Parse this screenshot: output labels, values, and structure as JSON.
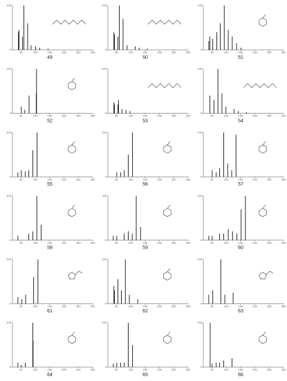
{
  "chart_data": [
    {
      "type": "bar",
      "title": "49",
      "x": [
        41,
        43,
        55,
        60,
        73,
        85,
        101,
        115,
        144
      ],
      "values": [
        40,
        45,
        30,
        100,
        60,
        10,
        8,
        5,
        3
      ],
      "color": "#111111",
      "xlim": [
        20,
        300
      ],
      "ylim": [
        0,
        100
      ],
      "xticks": [
        50,
        100,
        150,
        200,
        250,
        300
      ],
      "yticks": [
        0,
        100
      ]
    },
    {
      "type": "bar",
      "title": "50",
      "x": [
        41,
        43,
        55,
        60,
        73,
        87,
        115,
        129,
        158
      ],
      "values": [
        40,
        35,
        30,
        100,
        70,
        10,
        8,
        5,
        3
      ],
      "color": "#111111",
      "xlim": [
        20,
        300
      ],
      "ylim": [
        0,
        100
      ],
      "xticks": [
        50,
        100,
        150,
        200,
        250,
        300
      ],
      "yticks": [
        0,
        100
      ]
    },
    {
      "type": "bar",
      "title": "51",
      "x": [
        39,
        43,
        53,
        67,
        79,
        93,
        107,
        121,
        136,
        152
      ],
      "values": [
        20,
        30,
        25,
        40,
        60,
        100,
        45,
        30,
        15,
        5
      ],
      "color": "#111111",
      "xlim": [
        20,
        300
      ],
      "ylim": [
        0,
        100
      ],
      "xticks": [
        50,
        100,
        150,
        200,
        250,
        300
      ],
      "yticks": [
        0,
        100
      ]
    },
    {
      "type": "bar",
      "title": "52",
      "x": [
        51,
        63,
        78,
        103,
        104
      ],
      "values": [
        15,
        8,
        40,
        45,
        100
      ],
      "color": "#111111",
      "xlim": [
        20,
        300
      ],
      "ylim": [
        0,
        100
      ],
      "xticks": [
        50,
        100,
        150,
        200,
        250,
        300
      ],
      "yticks": [
        0,
        100
      ]
    },
    {
      "type": "bar",
      "title": "53",
      "x": [
        41,
        43,
        55,
        57,
        69,
        83,
        97
      ],
      "values": [
        25,
        20,
        20,
        30,
        10,
        8,
        5
      ],
      "color": "#111111",
      "xlim": [
        20,
        300
      ],
      "ylim": [
        0,
        100
      ],
      "xticks": [
        50,
        100,
        150,
        200,
        250,
        300
      ],
      "yticks": [
        0,
        100
      ]
    },
    {
      "type": "bar",
      "title": "54",
      "x": [
        43,
        57,
        71,
        85,
        99,
        127,
        142,
        170
      ],
      "values": [
        40,
        30,
        100,
        45,
        15,
        10,
        5,
        3
      ],
      "color": "#111111",
      "xlim": [
        20,
        300
      ],
      "ylim": [
        0,
        100
      ],
      "xticks": [
        50,
        100,
        150,
        200,
        250,
        300
      ],
      "yticks": [
        0,
        100
      ]
    },
    {
      "type": "bar",
      "title": "55",
      "x": [
        39,
        51,
        65,
        77,
        91,
        106
      ],
      "values": [
        10,
        15,
        12,
        15,
        60,
        100
      ],
      "color": "#111111",
      "xlim": [
        20,
        300
      ],
      "ylim": [
        0,
        100
      ],
      "xticks": [
        50,
        100,
        150,
        200,
        250,
        300
      ],
      "yticks": [
        0,
        100
      ]
    },
    {
      "type": "bar",
      "title": "56",
      "x": [
        51,
        65,
        77,
        91,
        106
      ],
      "values": [
        10,
        10,
        15,
        50,
        100
      ],
      "color": "#111111",
      "xlim": [
        20,
        300
      ],
      "ylim": [
        0,
        100
      ],
      "xticks": [
        50,
        100,
        150,
        200,
        250,
        300
      ],
      "yticks": [
        0,
        100
      ]
    },
    {
      "type": "bar",
      "title": "57",
      "x": [
        51,
        65,
        77,
        91,
        105,
        119,
        134
      ],
      "values": [
        15,
        10,
        20,
        100,
        30,
        15,
        95
      ],
      "color": "#111111",
      "xlim": [
        20,
        300
      ],
      "ylim": [
        0,
        100
      ],
      "xticks": [
        50,
        100,
        150,
        200,
        250,
        300
      ],
      "yticks": [
        0,
        100
      ]
    },
    {
      "type": "bar",
      "title": "58",
      "x": [
        39,
        77,
        91,
        105,
        120
      ],
      "values": [
        10,
        15,
        20,
        100,
        35
      ],
      "color": "#111111",
      "xlim": [
        20,
        300
      ],
      "ylim": [
        0,
        100
      ],
      "xticks": [
        50,
        100,
        150,
        200,
        250,
        300
      ],
      "yticks": [
        0,
        100
      ]
    },
    {
      "type": "bar",
      "title": "59",
      "x": [
        39,
        51,
        77,
        91,
        105,
        119,
        134
      ],
      "values": [
        10,
        10,
        15,
        20,
        15,
        100,
        30
      ],
      "color": "#111111",
      "xlim": [
        20,
        300
      ],
      "ylim": [
        0,
        100
      ],
      "xticks": [
        50,
        100,
        150,
        200,
        250,
        300
      ],
      "yticks": [
        0,
        100
      ]
    },
    {
      "type": "bar",
      "title": "60",
      "x": [
        39,
        51,
        77,
        91,
        107,
        122,
        137,
        152,
        167
      ],
      "values": [
        10,
        10,
        15,
        15,
        25,
        20,
        15,
        70,
        100
      ],
      "color": "#111111",
      "xlim": [
        20,
        300
      ],
      "ylim": [
        0,
        100
      ],
      "xticks": [
        50,
        100,
        150,
        200,
        250,
        300
      ],
      "yticks": [
        0,
        100
      ]
    },
    {
      "type": "bar",
      "title": "61",
      "x": [
        39,
        53,
        66,
        94,
        109
      ],
      "values": [
        15,
        10,
        20,
        60,
        100
      ],
      "color": "#111111",
      "xlim": [
        20,
        300
      ],
      "ylim": [
        0,
        100
      ],
      "xticks": [
        50,
        100,
        150,
        200,
        250,
        300
      ],
      "yticks": [
        0,
        100
      ]
    },
    {
      "type": "bar",
      "title": "62",
      "x": [
        41,
        43,
        55,
        67,
        81,
        95,
        124
      ],
      "values": [
        40,
        30,
        55,
        30,
        100,
        20,
        10
      ],
      "color": "#111111",
      "xlim": [
        20,
        300
      ],
      "ylim": [
        0,
        100
      ],
      "xticks": [
        50,
        100,
        150,
        200,
        250,
        300
      ],
      "yticks": [
        0,
        100
      ]
    },
    {
      "type": "bar",
      "title": "63",
      "x": [
        39,
        53,
        81,
        95,
        124
      ],
      "values": [
        20,
        30,
        100,
        20,
        25
      ],
      "color": "#111111",
      "xlim": [
        20,
        300
      ],
      "ylim": [
        0,
        100
      ],
      "xticks": [
        50,
        100,
        150,
        200,
        250,
        300
      ],
      "yticks": [
        0,
        100
      ]
    },
    {
      "type": "bar",
      "title": "64",
      "x": [
        39,
        51,
        65,
        91,
        92
      ],
      "values": [
        10,
        5,
        10,
        100,
        60
      ],
      "color": "#111111",
      "xlim": [
        20,
        300
      ],
      "ylim": [
        0,
        100
      ],
      "xticks": [
        50,
        100,
        150,
        200,
        250,
        300
      ],
      "yticks": [
        0,
        100
      ]
    },
    {
      "type": "bar",
      "title": "65",
      "x": [
        39,
        51,
        65,
        77,
        91,
        106
      ],
      "values": [
        8,
        10,
        10,
        10,
        100,
        50
      ],
      "color": "#111111",
      "xlim": [
        20,
        300
      ],
      "ylim": [
        0,
        100
      ],
      "xticks": [
        50,
        100,
        150,
        200,
        250,
        300
      ],
      "yticks": [
        0,
        100
      ]
    },
    {
      "type": "bar",
      "title": "66",
      "x": [
        44,
        51,
        65,
        77,
        91,
        120
      ],
      "values": [
        100,
        8,
        10,
        10,
        15,
        20
      ],
      "color": "#111111",
      "xlim": [
        20,
        300
      ],
      "ylim": [
        0,
        100
      ],
      "xticks": [
        50,
        100,
        150,
        200,
        250,
        300
      ],
      "yticks": [
        0,
        100
      ]
    }
  ]
}
